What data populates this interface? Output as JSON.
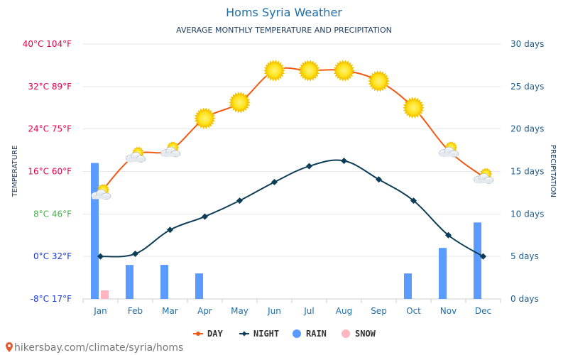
{
  "chart_data": {
    "type": "bar+line",
    "title": "Homs Syria Weather",
    "subtitle": "AVERAGE MONTHLY TEMPERATURE AND PRECIPITATION",
    "categories": [
      "Jan",
      "Feb",
      "Mar",
      "Apr",
      "May",
      "Jun",
      "Jul",
      "Aug",
      "Sep",
      "Oct",
      "Nov",
      "Dec"
    ],
    "left_axis": {
      "label": "TEMPERATURE",
      "range_c": [
        -8,
        40
      ],
      "ticks": [
        {
          "value": 40,
          "label": "40°C 104°F",
          "color": "#e4004f"
        },
        {
          "value": 32,
          "label": "32°C 89°F",
          "color": "#e4004f"
        },
        {
          "value": 24,
          "label": "24°C 75°F",
          "color": "#e4004f"
        },
        {
          "value": 16,
          "label": "16°C 60°F",
          "color": "#e4004f"
        },
        {
          "value": 8,
          "label": "8°C 46°F",
          "color": "#4caf50"
        },
        {
          "value": 0,
          "label": "0°C 32°F",
          "color": "#1a3ad6"
        },
        {
          "value": -8,
          "label": "-8°C 17°F",
          "color": "#1a3ad6"
        }
      ]
    },
    "right_axis": {
      "label": "PRECIPITATION",
      "range_days": [
        0,
        30
      ],
      "ticks": [
        {
          "value": 30,
          "label": "30 days"
        },
        {
          "value": 25,
          "label": "25 days"
        },
        {
          "value": 20,
          "label": "20 days"
        },
        {
          "value": 15,
          "label": "15 days"
        },
        {
          "value": 10,
          "label": "10 days"
        },
        {
          "value": 5,
          "label": "5 days"
        },
        {
          "value": 0,
          "label": "0 days"
        }
      ]
    },
    "series": [
      {
        "name": "DAY",
        "kind": "line",
        "axis": "left",
        "color": "#f05a14",
        "values": [
          12,
          19,
          20,
          26,
          29,
          35,
          35,
          35,
          33,
          28,
          20,
          15
        ],
        "icons": [
          "partly-cloudy",
          "partly-cloudy",
          "partly-cloudy",
          "sun",
          "sun",
          "sun",
          "sun",
          "sun",
          "sun",
          "sun",
          "partly-cloudy",
          "partly-cloudy"
        ]
      },
      {
        "name": "NIGHT",
        "kind": "line",
        "axis": "left",
        "color": "#0d3d57",
        "values": [
          0,
          0.5,
          5,
          7.5,
          10.5,
          14,
          17,
          18,
          14.5,
          10.5,
          4,
          0
        ]
      },
      {
        "name": "RAIN",
        "kind": "bar",
        "axis": "right",
        "color": "#5b9bff",
        "values": [
          16,
          4,
          4,
          3,
          0,
          0,
          0,
          0,
          0,
          3,
          6,
          9
        ]
      },
      {
        "name": "SNOW",
        "kind": "bar",
        "axis": "right",
        "color": "#ffb6c1",
        "values": [
          1,
          0,
          0,
          0,
          0,
          0,
          0,
          0,
          0,
          0,
          0,
          0
        ]
      }
    ],
    "legend": {
      "placement": "bottom"
    },
    "grid": true
  },
  "source_link": "hikersbay.com/climate/syria/homs",
  "icons": {
    "source": "map-pin-icon"
  }
}
